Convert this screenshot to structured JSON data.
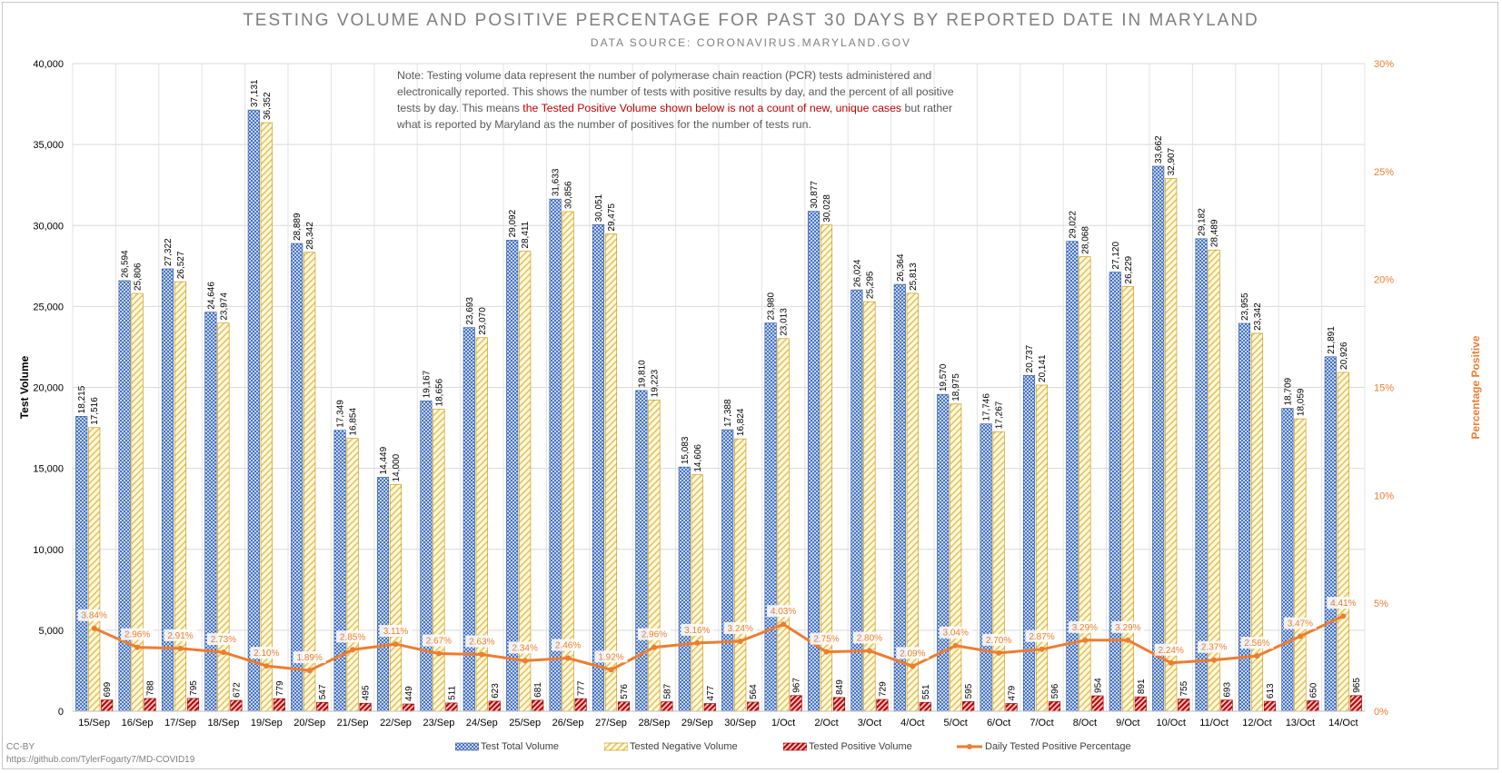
{
  "chart_data": {
    "type": "bar",
    "title": "TESTING VOLUME AND POSITIVE PERCENTAGE FOR PAST 30 DAYS BY REPORTED DATE IN MARYLAND",
    "subtitle": "DATA SOURCE: CORONAVIRUS.MARYLAND.GOV",
    "ylabel": "Test Volume",
    "y2label": "Percentage Positive",
    "ylim": [
      0,
      40000
    ],
    "y2lim": [
      0,
      30
    ],
    "yticks": [
      "0",
      "5,000",
      "10,000",
      "15,000",
      "20,000",
      "25,000",
      "30,000",
      "35,000",
      "40,000"
    ],
    "y2ticks": [
      "0%",
      "5%",
      "10%",
      "15%",
      "20%",
      "25%",
      "30%"
    ],
    "grid": true,
    "legend_position": "bottom",
    "categories": [
      "15/Sep",
      "16/Sep",
      "17/Sep",
      "18/Sep",
      "19/Sep",
      "20/Sep",
      "21/Sep",
      "22/Sep",
      "23/Sep",
      "24/Sep",
      "25/Sep",
      "26/Sep",
      "27/Sep",
      "28/Sep",
      "29/Sep",
      "30/Sep",
      "1/Oct",
      "2/Oct",
      "3/Oct",
      "4/Oct",
      "5/Oct",
      "6/Oct",
      "7/Oct",
      "8/Oct",
      "9/Oct",
      "10/Oct",
      "11/Oct",
      "12/Oct",
      "13/Oct",
      "14/Oct"
    ],
    "series": [
      {
        "name": "Test Total Volume",
        "color": "#4472c4",
        "values": [
          18215,
          26594,
          27322,
          24646,
          37131,
          28889,
          17349,
          14449,
          19167,
          23693,
          29092,
          31633,
          30051,
          19810,
          15083,
          17388,
          23980,
          30877,
          26024,
          26364,
          19570,
          17746,
          20737,
          29022,
          27120,
          33662,
          29182,
          23955,
          18709,
          21891
        ],
        "labels": [
          "18,215",
          "26,594",
          "27,322",
          "24,646",
          "37,131",
          "28,889",
          "17,349",
          "14,449",
          "19,167",
          "23,693",
          "29,092",
          "31,633",
          "30,051",
          "19,810",
          "15,083",
          "17,388",
          "23,980",
          "30,877",
          "26,024",
          "26,364",
          "19,570",
          "17,746",
          "20,737",
          "29,022",
          "27,120",
          "33,662",
          "29,182",
          "23,955",
          "18,709",
          "21,891"
        ]
      },
      {
        "name": "Tested Negative Volume",
        "color": "#ffe699",
        "values": [
          17516,
          25806,
          26527,
          23974,
          36352,
          28342,
          16854,
          14000,
          18656,
          23070,
          28411,
          30856,
          29475,
          19223,
          14606,
          16824,
          23013,
          30028,
          25295,
          25813,
          18975,
          17267,
          20141,
          28068,
          26229,
          32907,
          28489,
          23342,
          18059,
          20926
        ],
        "labels": [
          "17,516",
          "25,806",
          "26,527",
          "23,974",
          "36,352",
          "28,342",
          "16,854",
          "14,000",
          "18,656",
          "23,070",
          "28,411",
          "30,856",
          "29,475",
          "19,223",
          "14,606",
          "16,824",
          "23,013",
          "30,028",
          "25,295",
          "25,813",
          "18,975",
          "17,267",
          "20,141",
          "28,068",
          "26,229",
          "32,907",
          "28,489",
          "23,342",
          "18,059",
          "20,926"
        ]
      },
      {
        "name": "Tested Positive Volume",
        "color": "#c00000",
        "values": [
          699,
          788,
          795,
          672,
          779,
          547,
          495,
          449,
          511,
          623,
          681,
          777,
          576,
          587,
          477,
          564,
          967,
          849,
          729,
          551,
          595,
          479,
          596,
          954,
          891,
          755,
          693,
          613,
          650,
          965
        ],
        "labels": [
          "699",
          "788",
          "795",
          "672",
          "779",
          "547",
          "495",
          "449",
          "511",
          "623",
          "681",
          "777",
          "576",
          "587",
          "477",
          "564",
          "967",
          "849",
          "729",
          "551",
          "595",
          "479",
          "596",
          "954",
          "891",
          "755",
          "693",
          "613",
          "650",
          "965"
        ]
      },
      {
        "name": "Daily Tested Positive Percentage",
        "color": "#ed7d31",
        "type": "line",
        "axis": "secondary",
        "values": [
          3.84,
          2.96,
          2.91,
          2.73,
          2.1,
          1.89,
          2.85,
          3.11,
          2.67,
          2.63,
          2.34,
          2.46,
          1.92,
          2.96,
          3.16,
          3.24,
          4.03,
          2.75,
          2.8,
          2.09,
          3.04,
          2.7,
          2.87,
          3.29,
          3.29,
          2.24,
          2.37,
          2.56,
          3.47,
          4.41
        ],
        "labels": [
          "3.84%",
          "2.96%",
          "2.91%",
          "2.73%",
          "2.10%",
          "1.89%",
          "2.85%",
          "3.11%",
          "2.67%",
          "2.63%",
          "2.34%",
          "2.46%",
          "1.92%",
          "2.96%",
          "3.16%",
          "3.24%",
          "4.03%",
          "2.75%",
          "2.80%",
          "2.09%",
          "3.04%",
          "2.70%",
          "2.87%",
          "3.29%",
          "3.29%",
          "2.24%",
          "2.37%",
          "2.56%",
          "3.47%",
          "4.41%"
        ]
      }
    ],
    "note": {
      "part1": "Note: Testing volume data represent the number of polymerase chain reaction (PCR) tests administered and electronically reported. This shows the number of tests with positive results by day, and the percent of all positive tests by day. This means ",
      "part2": "the Tested Positive Volume shown below is not a count of new, unique cases",
      "part3": " but rather what is reported by Maryland as the number of positives for the number of tests run."
    }
  },
  "footer": {
    "license": "CC-BY",
    "url": "https://github.com/TylerFogarty7/MD-COVID19"
  }
}
